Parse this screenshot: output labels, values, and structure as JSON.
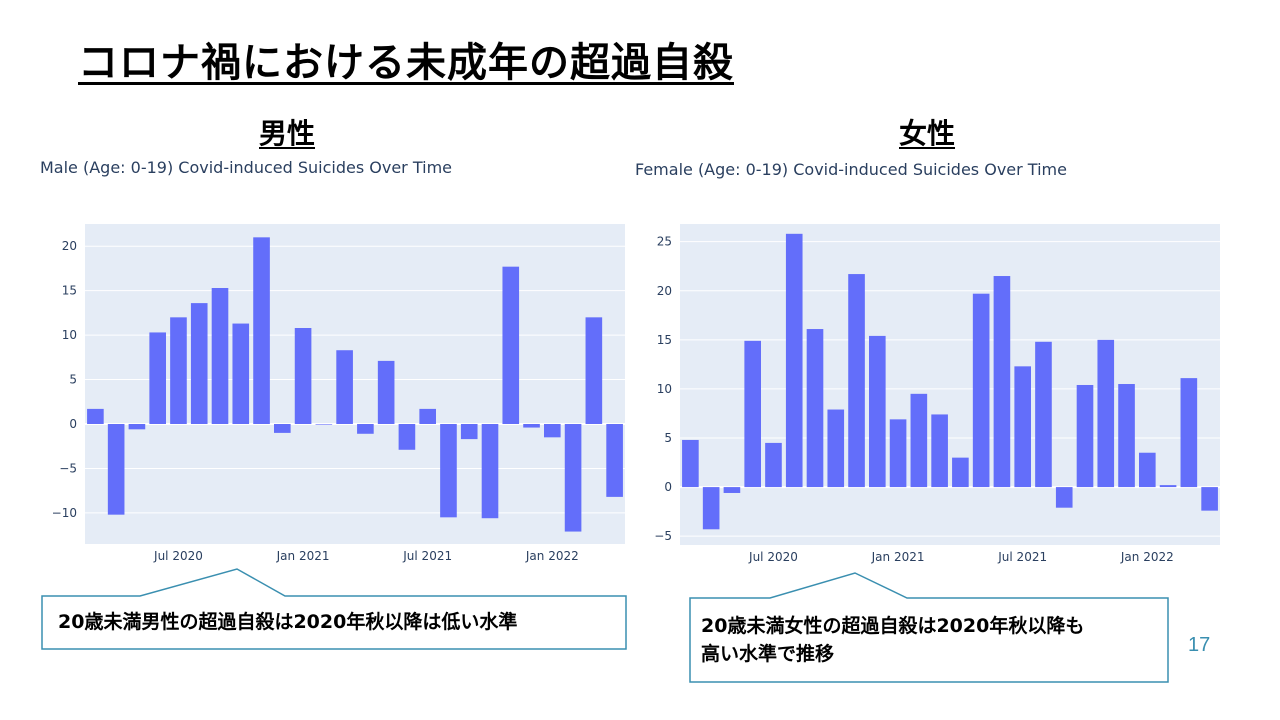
{
  "slide": {
    "title": "コロナ禍における未成年の超過自殺",
    "page_number": "17"
  },
  "male": {
    "heading": "男性",
    "chart_title": "Male (Age: 0-19) Covid-induced Suicides Over Time",
    "callout": "20歳未満男性の超過自殺は2020年秋以降は低い水準"
  },
  "female": {
    "heading": "女性",
    "chart_title": "Female (Age: 0-19) Covid-induced Suicides Over Time",
    "callout_line1": "20歳未満女性の超過自殺は2020年秋以降も",
    "callout_line2": "高い水準で推移"
  },
  "colors": {
    "bar": "#636efa",
    "plot_bg": "#e5ecf6",
    "axis_text": "#2a3f5f",
    "callout_border": "#3a8fb0"
  },
  "chart_data": [
    {
      "type": "bar",
      "title": "Male (Age: 0-19) Covid-induced Suicides Over Time",
      "x": [
        "2020-03",
        "2020-04",
        "2020-05",
        "2020-06",
        "2020-07",
        "2020-08",
        "2020-09",
        "2020-10",
        "2020-11",
        "2020-12",
        "2021-01",
        "2021-02",
        "2021-03",
        "2021-04",
        "2021-05",
        "2021-06",
        "2021-07",
        "2021-08",
        "2021-09",
        "2021-10",
        "2021-11",
        "2021-12",
        "2022-01",
        "2022-02",
        "2022-03",
        "2022-04"
      ],
      "values": [
        1.7,
        -10.2,
        -0.6,
        10.3,
        12.0,
        13.6,
        15.3,
        11.3,
        21.0,
        -1.0,
        10.8,
        0.0,
        8.3,
        -1.1,
        7.1,
        -2.9,
        1.7,
        -10.5,
        -1.7,
        -10.6,
        17.7,
        -0.4,
        -1.5,
        -12.1,
        12.0,
        -8.2
      ],
      "ylim": [
        -13.5,
        22.5
      ],
      "yticks": [
        -10,
        -5,
        0,
        5,
        10,
        15,
        20
      ],
      "ytick_labels": [
        "−10",
        "−5",
        "0",
        "5",
        "10",
        "15",
        "20"
      ],
      "xticks": [
        "Jul 2020",
        "Jan 2021",
        "Jul 2021",
        "Jan 2022"
      ],
      "grid": true
    },
    {
      "type": "bar",
      "title": "Female (Age: 0-19) Covid-induced Suicides Over Time",
      "x": [
        "2020-03",
        "2020-04",
        "2020-05",
        "2020-06",
        "2020-07",
        "2020-08",
        "2020-09",
        "2020-10",
        "2020-11",
        "2020-12",
        "2021-01",
        "2021-02",
        "2021-03",
        "2021-04",
        "2021-05",
        "2021-06",
        "2021-07",
        "2021-08",
        "2021-09",
        "2021-10",
        "2021-11",
        "2021-12",
        "2022-01",
        "2022-02",
        "2022-03",
        "2022-04"
      ],
      "values": [
        4.8,
        -4.3,
        -0.6,
        14.9,
        4.5,
        25.8,
        16.1,
        7.9,
        21.7,
        15.4,
        6.9,
        9.5,
        7.4,
        3.0,
        19.7,
        21.5,
        12.3,
        14.8,
        -2.1,
        10.4,
        15.0,
        10.5,
        3.5,
        0.2,
        11.1,
        -2.4
      ],
      "ylim": [
        -5.9,
        26.8
      ],
      "yticks": [
        -5,
        0,
        5,
        10,
        15,
        20,
        25
      ],
      "ytick_labels": [
        "−5",
        "0",
        "5",
        "10",
        "15",
        "20",
        "25"
      ],
      "xticks": [
        "Jul 2020",
        "Jan 2021",
        "Jul 2021",
        "Jan 2022"
      ],
      "grid": true
    }
  ]
}
